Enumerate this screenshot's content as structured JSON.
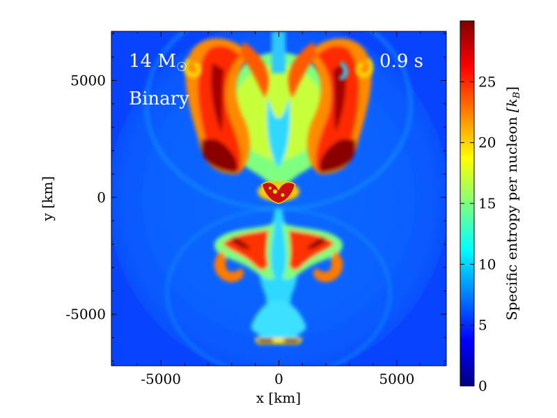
{
  "chart_data": {
    "type": "heatmap",
    "title": "",
    "xlabel": "x [km]",
    "ylabel": "y [km]",
    "xlim": [
      -7100,
      7100
    ],
    "ylim": [
      -7200,
      7100
    ],
    "xticks": [
      -5000,
      0,
      5000
    ],
    "xtick_labels": [
      "-5000",
      "0",
      "5000"
    ],
    "yticks": [
      -5000,
      0,
      5000
    ],
    "ytick_labels": [
      "-5000",
      "0",
      "5000"
    ],
    "colorbar": {
      "label": "Specific entropy per nucleon [k_B]",
      "label_main": "Specific entropy per nucleon ",
      "label_unit": "[k",
      "label_unit_sub": "B",
      "label_unit_close": "]",
      "range": [
        0,
        30
      ],
      "ticks": [
        0,
        5,
        10,
        15,
        20,
        25
      ],
      "tick_labels": [
        "0",
        "5",
        "10",
        "15",
        "20",
        "25"
      ],
      "colormap": "jet",
      "stops": [
        "#00007f",
        "#0000ff",
        "#007fff",
        "#00ffff",
        "#7fff7f",
        "#ffff00",
        "#ff7f00",
        "#ff0000",
        "#7f0000"
      ]
    },
    "annotations": {
      "mass": "14 M",
      "mass_symbol": "☉",
      "time": "0.9 s",
      "label": "Binary"
    },
    "field": {
      "background_entropy": 4,
      "features": [
        {
          "name": "upper-left-lobe",
          "x": -2200,
          "y": 4200,
          "entropy": 28
        },
        {
          "name": "upper-right-lobe",
          "x": 2200,
          "y": 4200,
          "entropy": 28
        },
        {
          "name": "upper-column",
          "x": 0,
          "y": 3000,
          "entropy": 18
        },
        {
          "name": "central-core",
          "x": 0,
          "y": 400,
          "entropy": 28
        },
        {
          "name": "lower-left-plume",
          "x": -1800,
          "y": -2400,
          "entropy": 26
        },
        {
          "name": "lower-right-plume",
          "x": 1800,
          "y": -2400,
          "entropy": 26
        },
        {
          "name": "lower-stem",
          "x": 0,
          "y": -4500,
          "entropy": 10
        }
      ]
    }
  }
}
